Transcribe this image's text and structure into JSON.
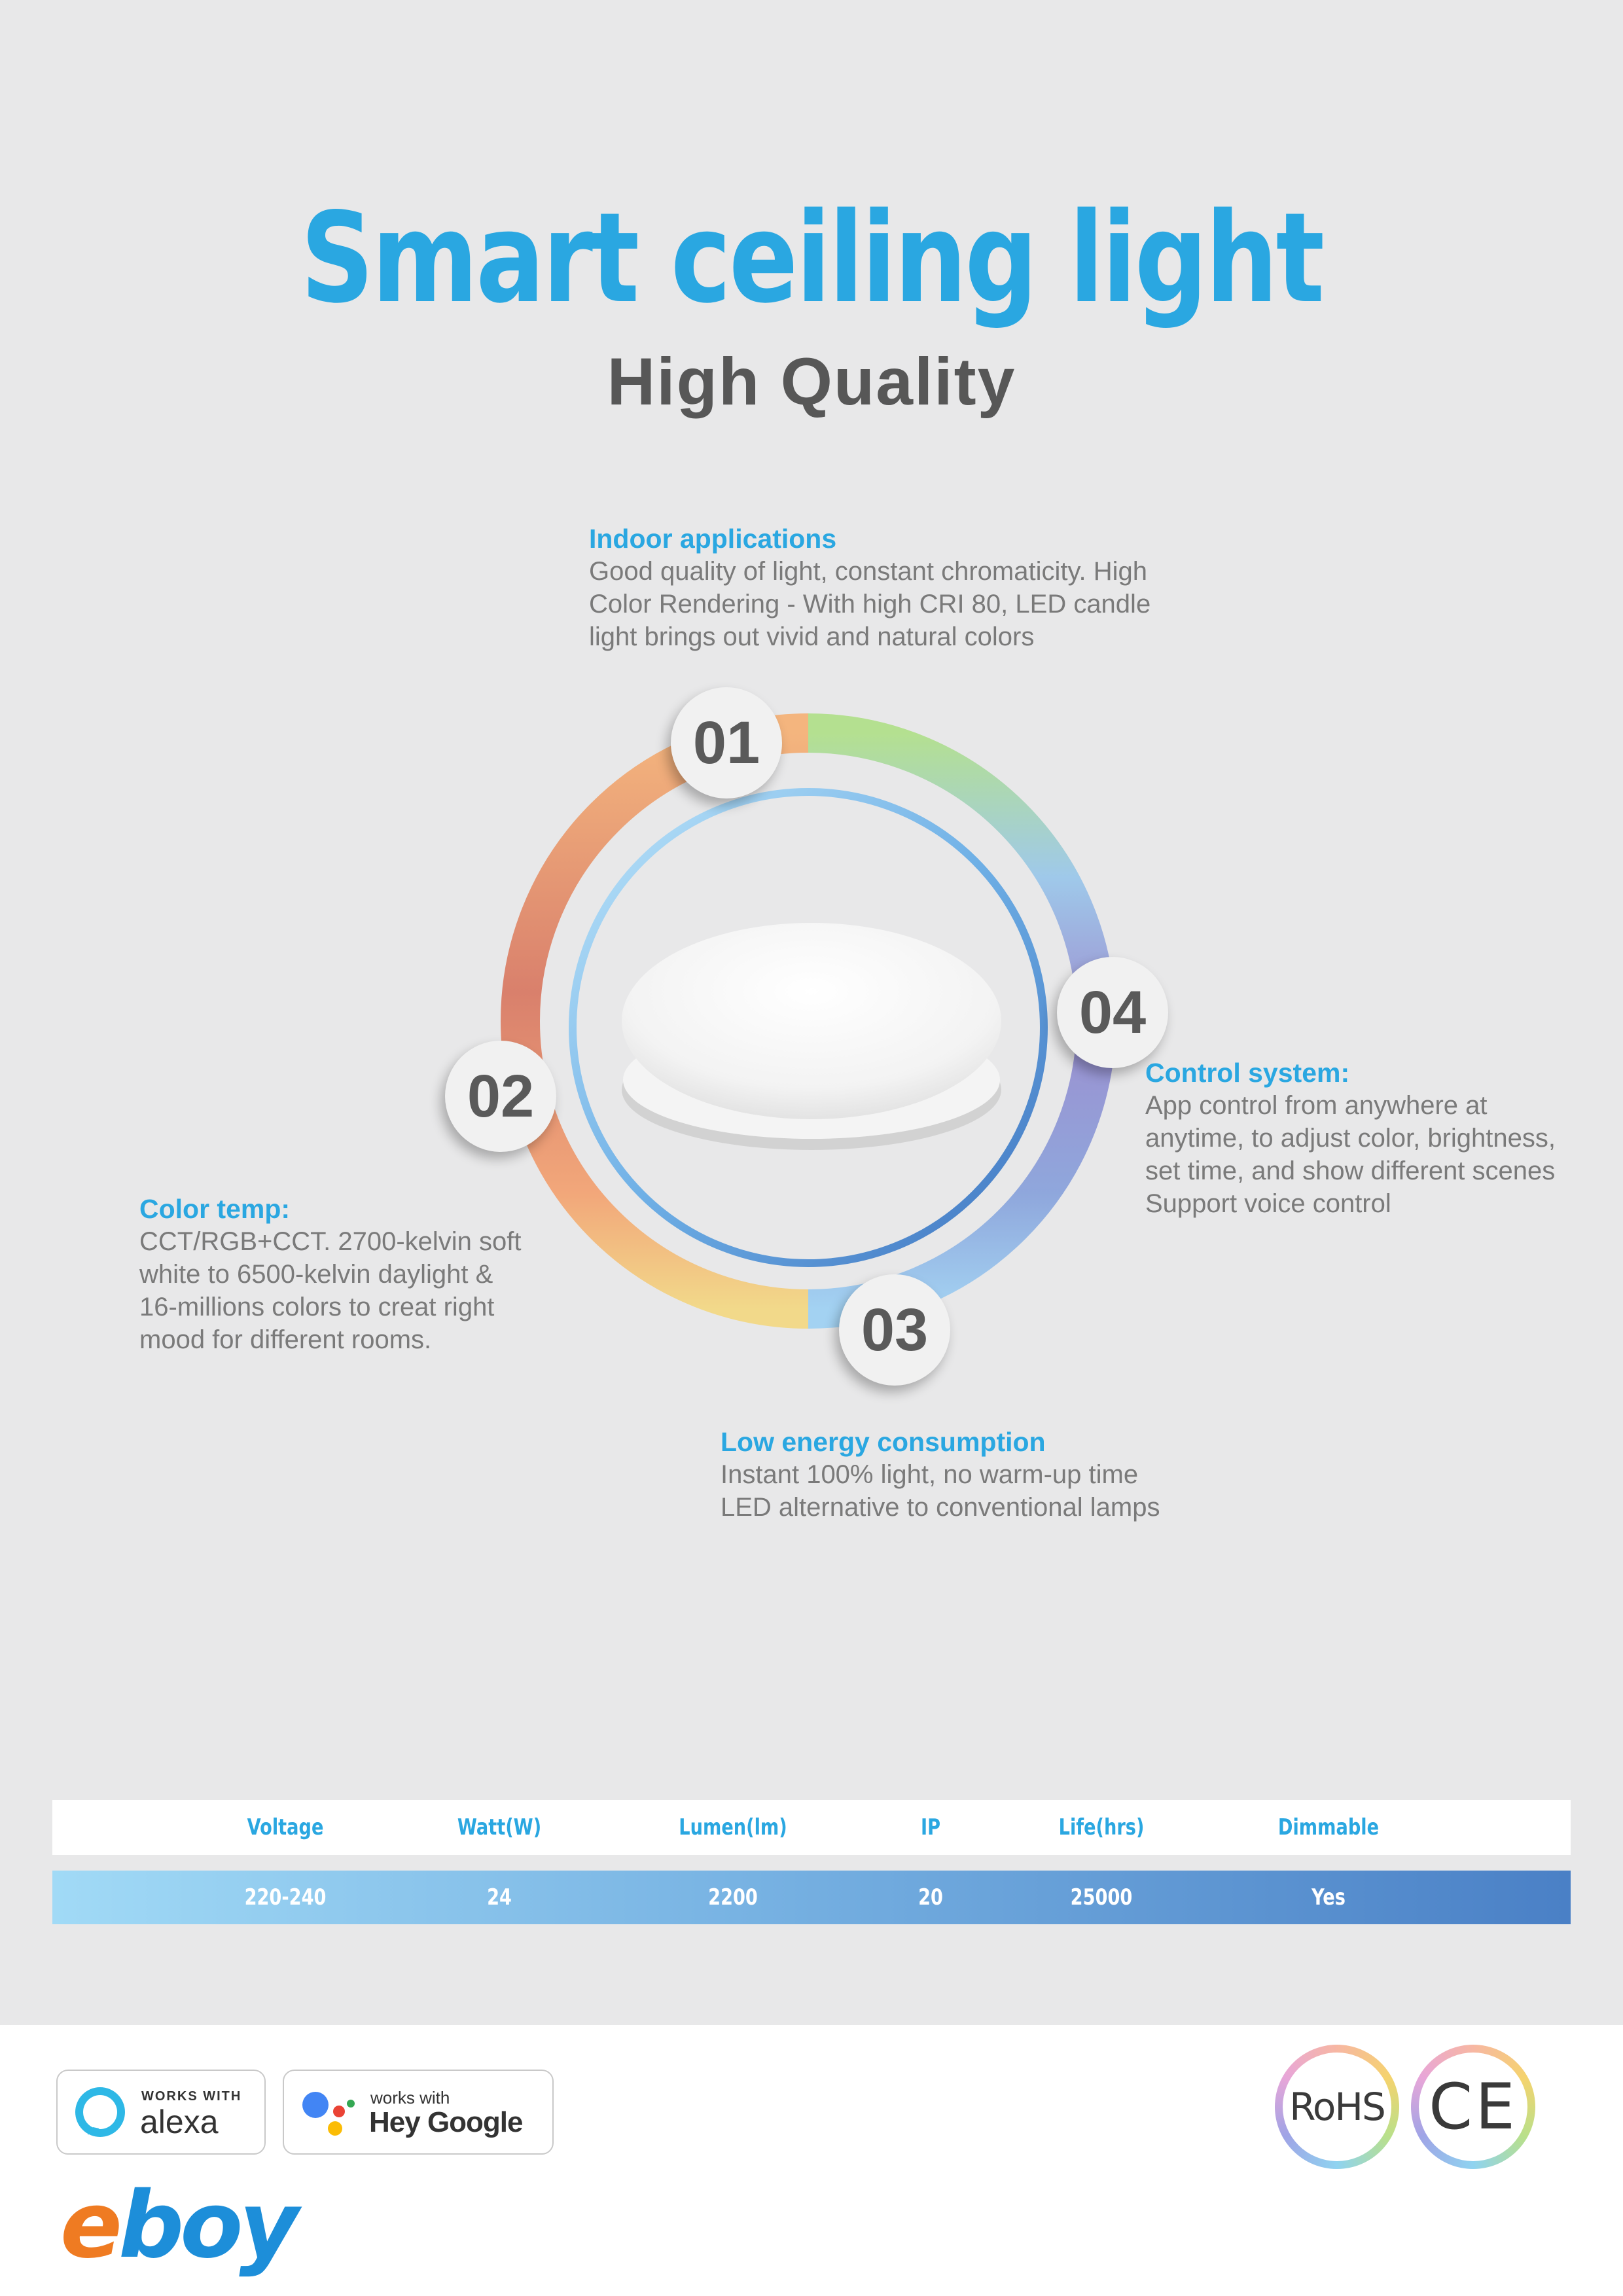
{
  "header": {
    "title": "Smart ceiling light",
    "subtitle": "High Quality"
  },
  "features": [
    {
      "number": "01",
      "heading": "Indoor applications",
      "lines": [
        "Good quality of light, constant chromaticity. High",
        "Color Rendering - With high CRI 80, LED candle",
        "light brings out vivid and natural colors"
      ]
    },
    {
      "number": "02",
      "heading": "Color temp:",
      "lines": [
        "CCT/RGB+CCT. 2700-kelvin soft",
        "white to 6500-kelvin daylight &",
        "16-millions colors to creat right",
        "mood for different rooms."
      ]
    },
    {
      "number": "03",
      "heading": "Low energy consumption",
      "lines": [
        "Instant 100% light, no warm-up time",
        "LED alternative to conventional lamps"
      ]
    },
    {
      "number": "04",
      "heading": "Control system:",
      "lines": [
        "App control from anywhere at",
        "anytime, to adjust color, brightness,",
        "set time, and show different scenes",
        "Support voice control"
      ]
    }
  ],
  "specs": {
    "headers": [
      "Voltage",
      "Watt(W)",
      "Lumen(lm)",
      "IP",
      "Life(hrs)",
      "Dimmable"
    ],
    "values": [
      "220-240",
      "24",
      "2200",
      "20",
      "25000",
      "Yes"
    ]
  },
  "footer": {
    "alexa_small": "WORKS WITH",
    "alexa_big": "alexa",
    "google_small": "works with",
    "google_big": "Hey Google",
    "brand": "eboy",
    "cert_rohs": "RoHS",
    "cert_ce": "CE"
  },
  "colors": {
    "accent": "#2aa7e1",
    "heading_gray": "#575757",
    "body_gray": "#7a7a7a",
    "brand_orange": "#ef7b22",
    "brand_blue": "#1d8ed9"
  }
}
